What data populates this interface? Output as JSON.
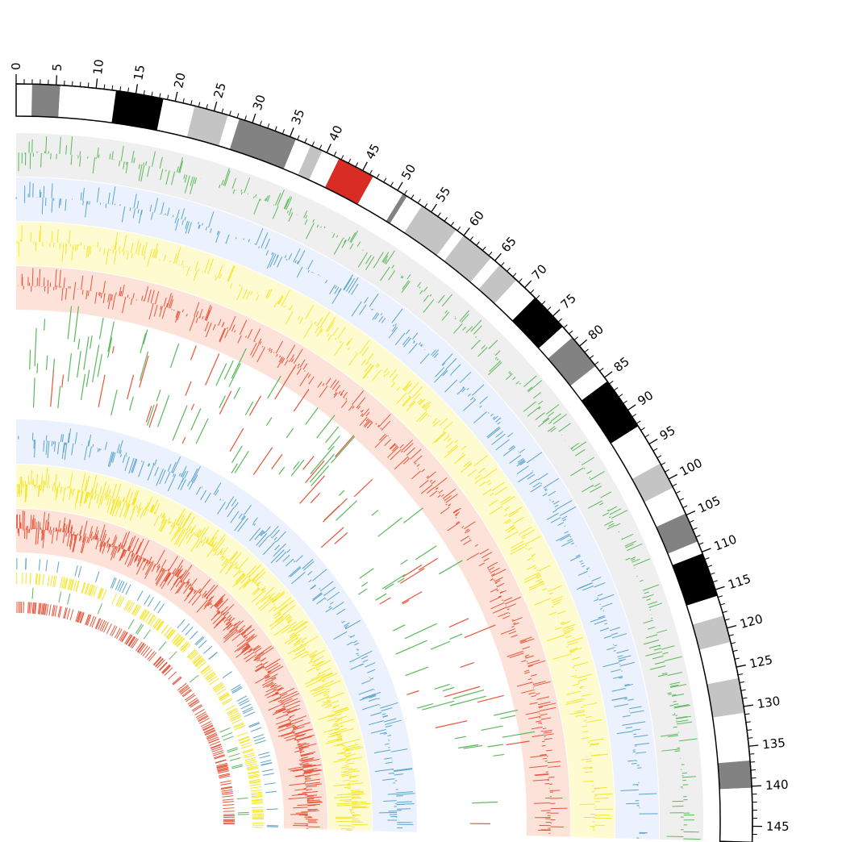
{
  "chromosome": {
    "length": 147,
    "tick_labels": [
      "0",
      "5",
      "10",
      "15",
      "20",
      "25",
      "30",
      "35",
      "40",
      "45",
      "50",
      "55",
      "60",
      "65",
      "70",
      "75",
      "80",
      "85",
      "90",
      "95",
      "100",
      "105",
      "110",
      "115",
      "120",
      "125",
      "130",
      "135",
      "140",
      "145"
    ],
    "bands": [
      {
        "start": 0,
        "end": 2,
        "stain": "white"
      },
      {
        "start": 2,
        "end": 5.5,
        "stain": "gray50"
      },
      {
        "start": 5.5,
        "end": 12.5,
        "stain": "white"
      },
      {
        "start": 12.5,
        "end": 18.5,
        "stain": "black"
      },
      {
        "start": 18.5,
        "end": 22.5,
        "stain": "white"
      },
      {
        "start": 22.5,
        "end": 26.8,
        "stain": "gray25"
      },
      {
        "start": 26.8,
        "end": 28.3,
        "stain": "white"
      },
      {
        "start": 28.3,
        "end": 35.8,
        "stain": "gray50"
      },
      {
        "start": 35.8,
        "end": 37.8,
        "stain": "white"
      },
      {
        "start": 37.8,
        "end": 39.4,
        "stain": "gray25"
      },
      {
        "start": 39.4,
        "end": 41.7,
        "stain": "white"
      },
      {
        "start": 41.7,
        "end": 46.5,
        "stain": "centromere"
      },
      {
        "start": 46.5,
        "end": 50.8,
        "stain": "white"
      },
      {
        "start": 50.8,
        "end": 51.4,
        "stain": "gray50"
      },
      {
        "start": 51.4,
        "end": 53.6,
        "stain": "white"
      },
      {
        "start": 53.6,
        "end": 58.8,
        "stain": "gray25"
      },
      {
        "start": 58.8,
        "end": 60,
        "stain": "white"
      },
      {
        "start": 60,
        "end": 64.4,
        "stain": "gray25"
      },
      {
        "start": 64.4,
        "end": 65.8,
        "stain": "white"
      },
      {
        "start": 65.8,
        "end": 68.6,
        "stain": "gray25"
      },
      {
        "start": 68.6,
        "end": 71.8,
        "stain": "white"
      },
      {
        "start": 71.8,
        "end": 76.8,
        "stain": "black"
      },
      {
        "start": 76.8,
        "end": 78.6,
        "stain": "white"
      },
      {
        "start": 78.6,
        "end": 83.2,
        "stain": "gray50"
      },
      {
        "start": 83.2,
        "end": 85.6,
        "stain": "white"
      },
      {
        "start": 85.6,
        "end": 92.4,
        "stain": "black"
      },
      {
        "start": 92.4,
        "end": 97.8,
        "stain": "white"
      },
      {
        "start": 97.8,
        "end": 101.2,
        "stain": "gray25"
      },
      {
        "start": 101.2,
        "end": 104.8,
        "stain": "white"
      },
      {
        "start": 104.8,
        "end": 108.6,
        "stain": "gray50"
      },
      {
        "start": 108.6,
        "end": 110.2,
        "stain": "white"
      },
      {
        "start": 110.2,
        "end": 115.8,
        "stain": "black"
      },
      {
        "start": 115.8,
        "end": 118.4,
        "stain": "white"
      },
      {
        "start": 118.4,
        "end": 121.8,
        "stain": "gray25"
      },
      {
        "start": 121.8,
        "end": 126.4,
        "stain": "white"
      },
      {
        "start": 126.4,
        "end": 130.8,
        "stain": "gray25"
      },
      {
        "start": 130.8,
        "end": 136.8,
        "stain": "white"
      },
      {
        "start": 136.8,
        "end": 140.2,
        "stain": "gray50"
      },
      {
        "start": 140.2,
        "end": 147,
        "stain": "white"
      }
    ]
  },
  "colors": {
    "gray25": "#c4c4c4",
    "gray50": "#828282",
    "black": "#000000",
    "white": "#ffffff",
    "centromere": "#d92c24",
    "green": "#5cb85c",
    "blue": "#5ba3cb",
    "yellow": "#f6e52b",
    "red": "#e8553a",
    "green_bg": "#efefef",
    "blue_bg": "#ebf2fe",
    "yellow_bg": "#fefbd0",
    "red_bg": "#fde2da"
  },
  "tracks": [
    {
      "id": "green-outer",
      "type": "histogram",
      "color": "green",
      "background": "green_bg"
    },
    {
      "id": "blue-outer",
      "type": "histogram",
      "color": "blue",
      "background": "blue_bg"
    },
    {
      "id": "yellow-outer",
      "type": "histogram",
      "color": "yellow",
      "background": "yellow_bg"
    },
    {
      "id": "red-outer",
      "type": "histogram",
      "color": "red",
      "background": "red_bg"
    },
    {
      "id": "segments",
      "type": "tiles",
      "colors": [
        "green",
        "red"
      ]
    },
    {
      "id": "blue-middle",
      "type": "histogram",
      "color": "blue",
      "background": "blue_bg"
    },
    {
      "id": "yellow-middle",
      "type": "histogram",
      "color": "yellow",
      "background": "yellow_bg"
    },
    {
      "id": "red-middle",
      "type": "histogram",
      "color": "red",
      "background": "red_bg"
    },
    {
      "id": "inner-ticks",
      "type": "highlights",
      "colors": [
        "blue",
        "yellow",
        "green",
        "red"
      ]
    }
  ]
}
